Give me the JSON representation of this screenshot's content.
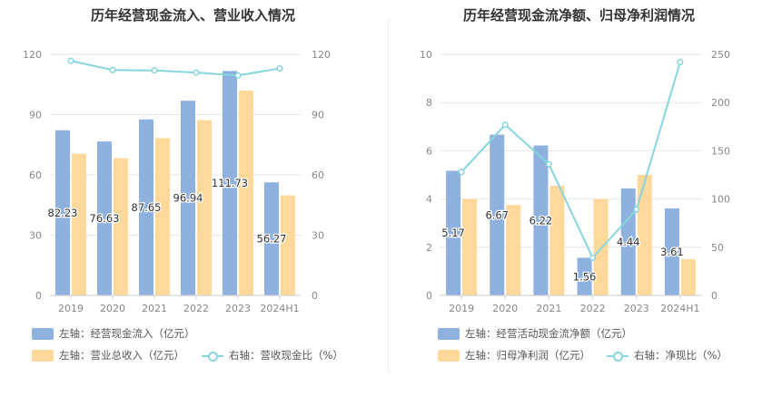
{
  "colors": {
    "bar_primary": "#8fb1de",
    "bar_secondary": "#ffd99b",
    "line": "#86d5df",
    "grid": "#e6e6e6",
    "axis_text": "#888888"
  },
  "chart_data": [
    {
      "type": "bar",
      "title": "历年经营现金流入、营业收入情况",
      "categories": [
        "2019",
        "2020",
        "2021",
        "2022",
        "2023",
        "2024H1"
      ],
      "left_axis": {
        "ticks": [
          "0",
          "30",
          "60",
          "90",
          "120"
        ],
        "ylim": [
          0,
          120
        ]
      },
      "right_axis": {
        "ticks": [
          "0",
          "30",
          "60",
          "90",
          "120"
        ],
        "ylim": [
          0,
          120
        ]
      },
      "series": [
        {
          "name": "经营现金流入",
          "kind": "bar",
          "axis": "left",
          "color": "#8fb1de",
          "values": [
            82.23,
            76.63,
            87.65,
            96.94,
            111.73,
            56.27
          ],
          "labels": [
            "82.23",
            "76.63",
            "87.65",
            "96.94",
            "111.73",
            "56.27"
          ]
        },
        {
          "name": "营业总收入",
          "kind": "bar",
          "axis": "left",
          "color": "#ffd99b",
          "values": [
            70.5,
            68.3,
            78.3,
            87.3,
            102.0,
            49.8
          ]
        },
        {
          "name": "营收现金比",
          "kind": "line",
          "axis": "right",
          "color": "#86d5df",
          "values": [
            116.8,
            112.2,
            112.0,
            110.9,
            109.5,
            113.0
          ]
        }
      ],
      "legend": [
        {
          "kind": "bar",
          "color": "#8fb1de",
          "text": "左轴：经营现金流入（亿元）"
        },
        {
          "kind": "bar",
          "color": "#ffd99b",
          "text": "左轴：营业总收入（亿元）"
        },
        {
          "kind": "line",
          "color": "#86d5df",
          "text": "右轴：营收现金比（%）"
        }
      ]
    },
    {
      "type": "bar",
      "title": "历年经营现金流净额、归母净利润情况",
      "categories": [
        "2019",
        "2020",
        "2021",
        "2022",
        "2023",
        "2024H1"
      ],
      "left_axis": {
        "ticks": [
          "0",
          "2",
          "4",
          "6",
          "8",
          "10"
        ],
        "ylim": [
          0,
          10
        ]
      },
      "right_axis": {
        "ticks": [
          "0",
          "50",
          "100",
          "150",
          "200",
          "250"
        ],
        "ylim": [
          0,
          250
        ]
      },
      "series": [
        {
          "name": "经营活动现金流净额",
          "kind": "bar",
          "axis": "left",
          "color": "#8fb1de",
          "values": [
            5.17,
            6.67,
            6.22,
            1.56,
            4.44,
            3.61
          ],
          "labels": [
            "5.17",
            "6.67",
            "6.22",
            "1.56",
            "4.44",
            "3.61"
          ]
        },
        {
          "name": "归母净利润",
          "kind": "bar",
          "axis": "left",
          "color": "#ffd99b",
          "values": [
            4.0,
            3.75,
            4.55,
            4.0,
            5.0,
            1.5
          ]
        },
        {
          "name": "净现比",
          "kind": "line",
          "axis": "right",
          "color": "#86d5df",
          "values": [
            128,
            177,
            136,
            39,
            89,
            242
          ]
        }
      ],
      "legend": [
        {
          "kind": "bar",
          "color": "#8fb1de",
          "text": "左轴：经营活动现金流净额（亿元）"
        },
        {
          "kind": "bar",
          "color": "#ffd99b",
          "text": "左轴：归母净利润（亿元）"
        },
        {
          "kind": "line",
          "color": "#86d5df",
          "text": "右轴：净现比（%）"
        }
      ]
    }
  ]
}
